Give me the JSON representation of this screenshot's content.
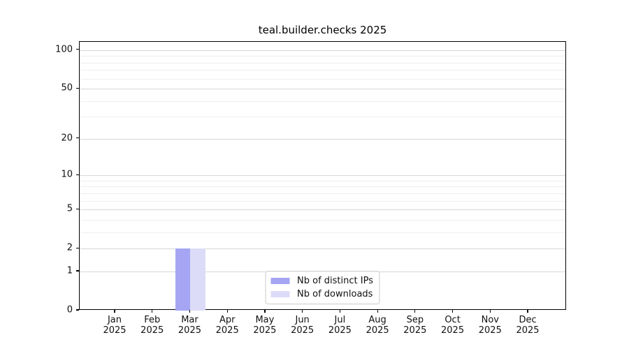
{
  "chart_data": {
    "type": "bar",
    "title": "teal.builder.checks 2025",
    "x_categories": [
      "Jan",
      "Feb",
      "Mar",
      "Apr",
      "May",
      "Jun",
      "Jul",
      "Aug",
      "Sep",
      "Oct",
      "Nov",
      "Dec"
    ],
    "x_year_line": "2025",
    "series": [
      {
        "name": "Nb of distinct IPs",
        "color": "#a5a5f3",
        "values": [
          0,
          0,
          2,
          0,
          0,
          0,
          0,
          0,
          0,
          0,
          0,
          0
        ]
      },
      {
        "name": "Nb of downloads",
        "color": "#dcdcf8",
        "values": [
          0,
          0,
          2,
          0,
          0,
          0,
          0,
          0,
          0,
          0,
          0,
          0
        ]
      }
    ],
    "yscale": "log1p",
    "ylim": [
      0,
      116
    ],
    "yticks_major": [
      0,
      1,
      2,
      5,
      10,
      20,
      50,
      100
    ],
    "yticks_minor": [
      3,
      4,
      6,
      7,
      8,
      9,
      30,
      40,
      60,
      70,
      80,
      90
    ],
    "grid": "horizontal",
    "legend_position": "lower center"
  },
  "colors": {
    "major_grid": "#d6d6d6",
    "minor_grid": "#eeeeee",
    "spine": "#000000",
    "text": "#111111"
  }
}
